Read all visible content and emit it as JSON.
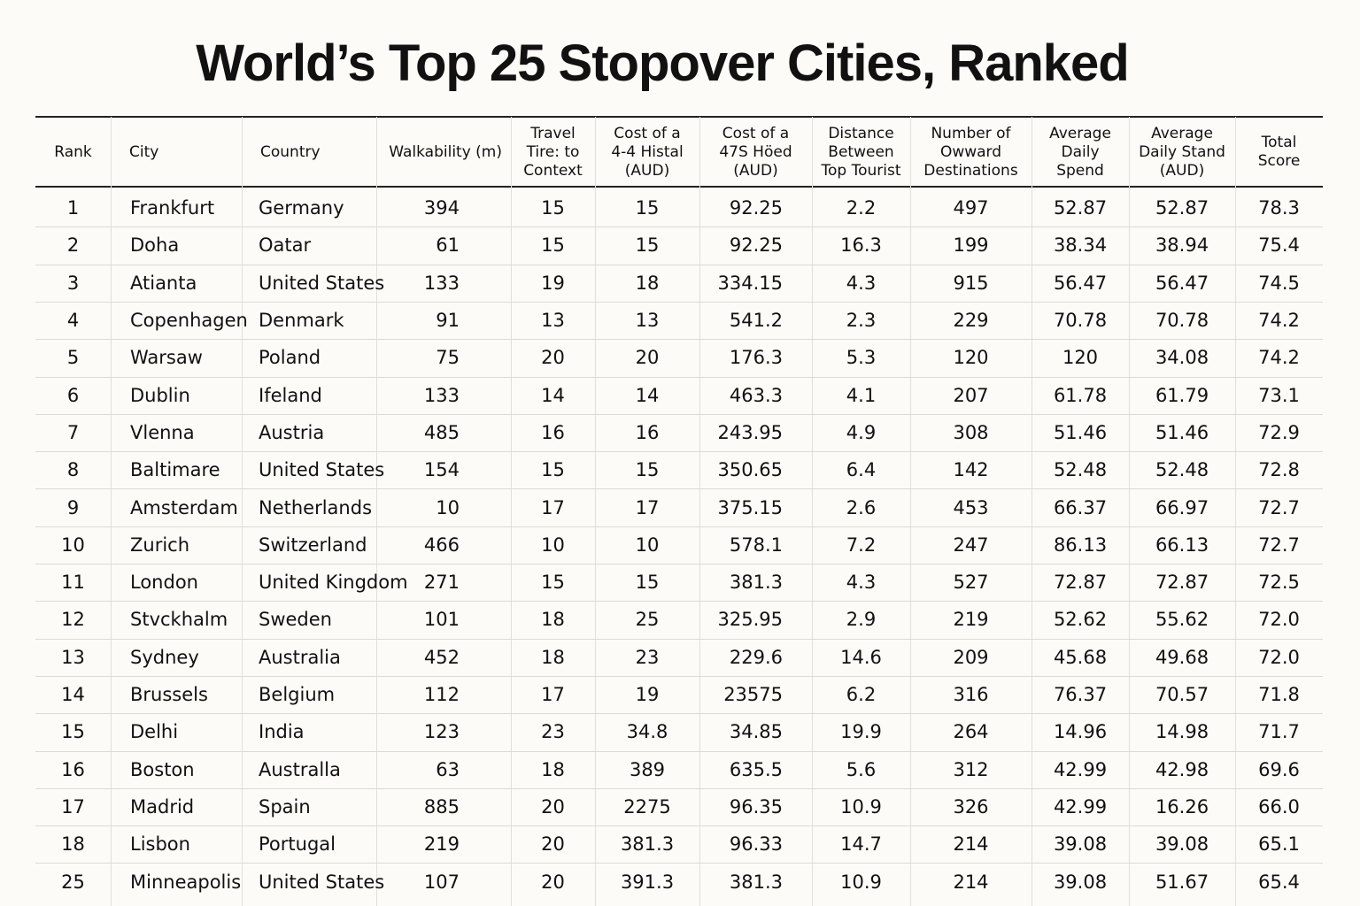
{
  "header": {
    "title": "World’s Top 25 Stopover Cities, Ranked"
  },
  "table": {
    "columns": [
      [
        "Rank"
      ],
      [
        "City"
      ],
      [
        "Country"
      ],
      [
        "Walkability (m)"
      ],
      [
        "Travel",
        "Tire: to",
        "Context"
      ],
      [
        "Cost of a",
        "4-4 Histal",
        "(AUD)"
      ],
      [
        "Cost of a",
        "47S Höed",
        "(AUD)"
      ],
      [
        "Distance",
        "Between",
        "Top Tourist"
      ],
      [
        "Number of",
        "Owward",
        "Destinations"
      ],
      [
        "Average",
        "Daily",
        "Spend"
      ],
      [
        "Average",
        "Daily Stand",
        "(AUD)"
      ],
      [
        "Total",
        "Score"
      ]
    ],
    "rows": [
      [
        "1",
        "Frankfurt",
        "Germany",
        "394",
        "15",
        "15",
        "92.25",
        "2.2",
        "497",
        "52.87",
        "52.87",
        "78.3"
      ],
      [
        "2",
        "Doha",
        "Oatar",
        "61",
        "15",
        "15",
        "92.25",
        "16.3",
        "199",
        "38.34",
        "38.94",
        "75.4"
      ],
      [
        "3",
        "Atianta",
        "United States",
        "133",
        "19",
        "18",
        "334.15",
        "4.3",
        "915",
        "56.47",
        "56.47",
        "74.5"
      ],
      [
        "4",
        "Copenhagen",
        "Denmark",
        "91",
        "13",
        "13",
        "541.2",
        "2.3",
        "229",
        "70.78",
        "70.78",
        "74.2"
      ],
      [
        "5",
        "Warsaw",
        "Poland",
        "75",
        "20",
        "20",
        "176.3",
        "5.3",
        "120",
        "120",
        "34.08",
        "74.2"
      ],
      [
        "6",
        "Dublin",
        "Ifeland",
        "133",
        "14",
        "14",
        "463.3",
        "4.1",
        "207",
        "61.78",
        "61.79",
        "73.1"
      ],
      [
        "7",
        "Vlenna",
        "Austria",
        "485",
        "16",
        "16",
        "243.95",
        "4.9",
        "308",
        "51.46",
        "51.46",
        "72.9"
      ],
      [
        "8",
        "Baltimare",
        "United States",
        "154",
        "15",
        "15",
        "350.65",
        "6.4",
        "142",
        "52.48",
        "52.48",
        "72.8"
      ],
      [
        "9",
        "Amsterdam",
        "Netherlands",
        "10",
        "17",
        "17",
        "375.15",
        "2.6",
        "453",
        "66.37",
        "66.97",
        "72.7"
      ],
      [
        "10",
        "Zurich",
        "Switzerland",
        "466",
        "10",
        "10",
        "578.1",
        "7.2",
        "247",
        "86.13",
        "66.13",
        "72.7"
      ],
      [
        "11",
        "London",
        "United Kingdom",
        "271",
        "15",
        "15",
        "381.3",
        "4.3",
        "527",
        "72.87",
        "72.87",
        "72.5"
      ],
      [
        "12",
        "Stvckhalm",
        "Sweden",
        "101",
        "18",
        "25",
        "325.95",
        "2.9",
        "219",
        "52.62",
        "55.62",
        "72.0"
      ],
      [
        "13",
        "Sydney",
        "Australia",
        "452",
        "18",
        "23",
        "229.6",
        "14.6",
        "209",
        "45.68",
        "49.68",
        "72.0"
      ],
      [
        "14",
        "Brussels",
        "Belgium",
        "112",
        "17",
        "19",
        "23575",
        "6.2",
        "316",
        "76.37",
        "70.57",
        "71.8"
      ],
      [
        "15",
        "Delhi",
        "India",
        "123",
        "23",
        "34.8",
        "34.85",
        "19.9",
        "264",
        "14.96",
        "14.98",
        "71.7"
      ],
      [
        "16",
        "Boston",
        "Australla",
        "63",
        "18",
        "389",
        "635.5",
        "5.6",
        "312",
        "42.99",
        "42.98",
        "69.6"
      ],
      [
        "17",
        "Madrid",
        "Spain",
        "885",
        "20",
        "2275",
        "96.35",
        "10.9",
        "326",
        "42.99",
        "16.26",
        "66.0"
      ],
      [
        "18",
        "Lisbon",
        "Portugal",
        "219",
        "20",
        "381.3",
        "96.33",
        "14.7",
        "214",
        "39.08",
        "39.08",
        "65.1"
      ],
      [
        "25",
        "Minneapolis",
        "United States",
        "107",
        "20",
        "391.3",
        "381.3",
        "10.9",
        "214",
        "39.08",
        "51.67",
        "65.4"
      ]
    ]
  }
}
